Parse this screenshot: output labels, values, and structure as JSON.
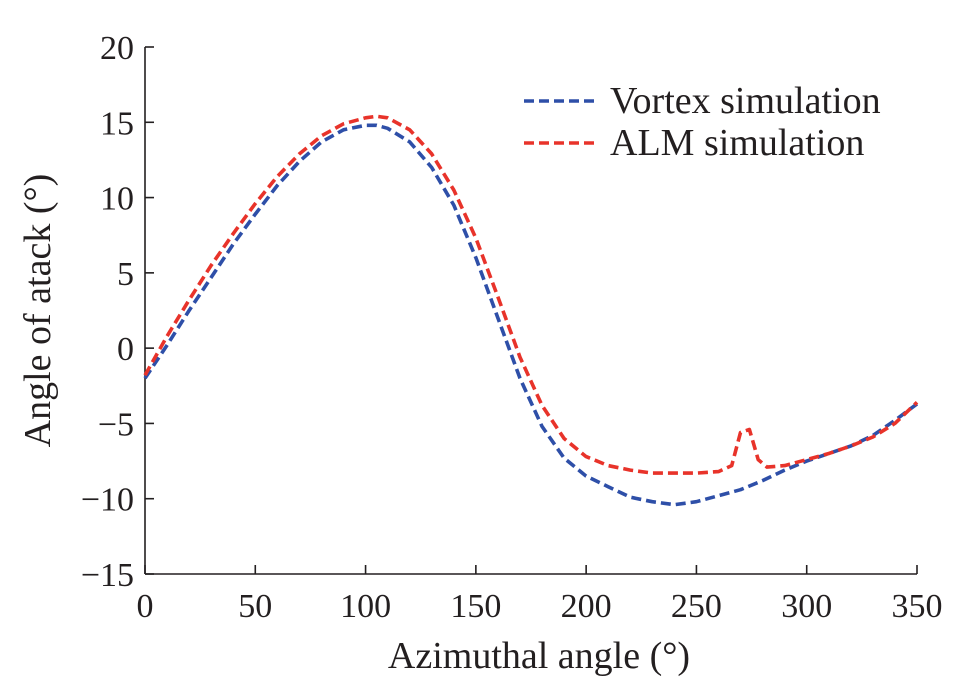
{
  "chart_data": {
    "type": "line",
    "title": "",
    "xlabel": "Azimuthal angle (°)",
    "ylabel": "Angle of atack (°)",
    "xlim": [
      0,
      350
    ],
    "ylim": [
      -15,
      20
    ],
    "xticks": [
      0,
      50,
      100,
      150,
      200,
      250,
      300,
      350
    ],
    "yticks": [
      20,
      15,
      10,
      5,
      0,
      -5,
      -10,
      -15
    ],
    "xtick_labels": [
      "0",
      "50",
      "100",
      "150",
      "200",
      "250",
      "300",
      "350"
    ],
    "ytick_labels": [
      "20",
      "15",
      "10",
      "5",
      "0",
      "−5",
      "−10",
      "−15"
    ],
    "grid": false,
    "legend_position": "top-right",
    "series": [
      {
        "name": "Vortex simulation",
        "color": "#2e4fa8",
        "style": "dashed",
        "x": [
          0,
          10,
          20,
          30,
          40,
          50,
          60,
          70,
          80,
          90,
          100,
          105,
          110,
          120,
          130,
          140,
          150,
          160,
          170,
          180,
          190,
          200,
          210,
          220,
          230,
          240,
          250,
          260,
          270,
          280,
          290,
          300,
          310,
          320,
          330,
          340,
          350
        ],
        "y": [
          -2,
          0.2,
          2.5,
          4.7,
          6.9,
          8.9,
          10.8,
          12.4,
          13.7,
          14.5,
          14.8,
          14.8,
          14.6,
          13.7,
          12.0,
          9.5,
          6.0,
          2.0,
          -2.0,
          -5.2,
          -7.3,
          -8.5,
          -9.2,
          -9.9,
          -10.2,
          -10.4,
          -10.2,
          -9.8,
          -9.4,
          -8.8,
          -8.1,
          -7.5,
          -7.0,
          -6.5,
          -5.8,
          -4.8,
          -3.7
        ]
      },
      {
        "name": "ALM simulation",
        "color": "#e8332a",
        "style": "dashed",
        "x": [
          0,
          10,
          20,
          30,
          40,
          50,
          60,
          70,
          80,
          90,
          100,
          105,
          110,
          120,
          130,
          140,
          150,
          160,
          170,
          180,
          190,
          200,
          210,
          220,
          230,
          240,
          250,
          260,
          266,
          270,
          274,
          278,
          282,
          290,
          300,
          310,
          320,
          330,
          340,
          350
        ],
        "y": [
          -1.8,
          0.8,
          3.2,
          5.5,
          7.6,
          9.6,
          11.4,
          12.9,
          14.1,
          14.9,
          15.3,
          15.4,
          15.3,
          14.5,
          12.9,
          10.5,
          7.3,
          3.4,
          -0.6,
          -3.8,
          -6.0,
          -7.2,
          -7.8,
          -8.1,
          -8.3,
          -8.3,
          -8.3,
          -8.2,
          -7.8,
          -5.6,
          -5.4,
          -7.4,
          -7.9,
          -7.8,
          -7.4,
          -7.0,
          -6.5,
          -5.9,
          -5.0,
          -3.6
        ]
      }
    ]
  }
}
